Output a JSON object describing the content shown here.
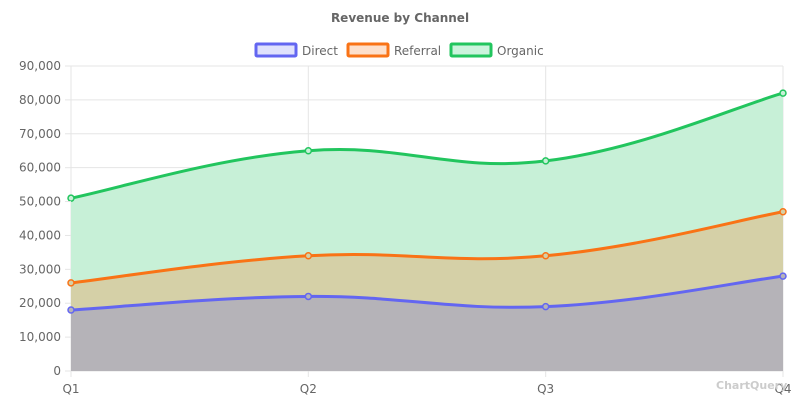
{
  "chart_data": {
    "type": "area",
    "title": "Revenue by Channel",
    "stacked": true,
    "categories": [
      "Q1",
      "Q2",
      "Q3",
      "Q4"
    ],
    "ylim": [
      0,
      90000
    ],
    "yticks": [
      0,
      10000,
      20000,
      30000,
      40000,
      50000,
      60000,
      70000,
      80000,
      90000
    ],
    "ytick_labels": [
      "0",
      "10,000",
      "20,000",
      "30,000",
      "40,000",
      "50,000",
      "60,000",
      "70,000",
      "80,000",
      "90,000"
    ],
    "grid": true,
    "legend_position": "top",
    "series": [
      {
        "name": "Direct",
        "values": [
          18000,
          22000,
          19000,
          28000
        ],
        "color": "#6366f1",
        "fill": "#b5b3b8"
      },
      {
        "name": "Referral",
        "values": [
          26000,
          34000,
          34000,
          47000
        ],
        "color": "#f97316",
        "fill": "#d5d0a7"
      },
      {
        "name": "Organic",
        "values": [
          51000,
          65000,
          62000,
          82000
        ],
        "color": "#22c55e",
        "fill": "#c7f0d7"
      }
    ]
  },
  "watermark": "ChartQuery"
}
